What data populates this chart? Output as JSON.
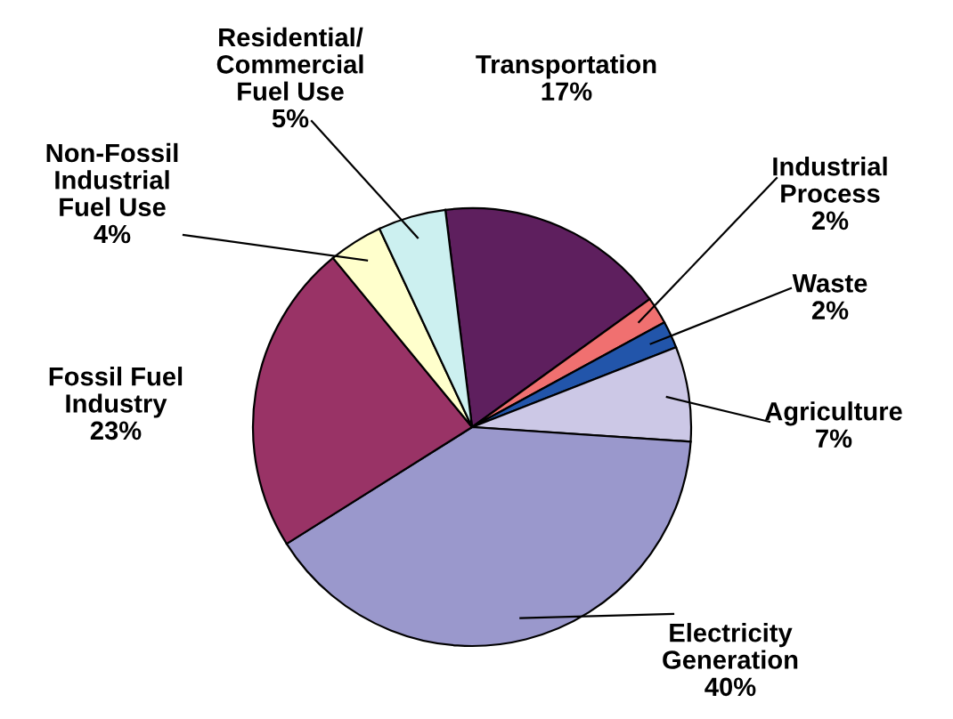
{
  "chart_data": {
    "type": "pie",
    "categories": [
      "Transportation",
      "Industrial\nProcess",
      "Waste",
      "Agriculture",
      "Electricity\nGeneration",
      "Fossil Fuel\nIndustry",
      "Non-Fossil\nIndustrial\nFuel Use",
      "Residential/\nCommercial\nFuel Use"
    ],
    "values": [
      17,
      2,
      2,
      7,
      40,
      23,
      4,
      5
    ],
    "value_labels": [
      "17%",
      "2%",
      "2%",
      "7%",
      "40%",
      "23%",
      "4%",
      "5%"
    ],
    "colors": [
      "#5e1f5e",
      "#f07070",
      "#2255aa",
      "#ccc8e6",
      "#9a98cc",
      "#993366",
      "#ffffcc",
      "#ccf0f0"
    ],
    "legend": false
  }
}
